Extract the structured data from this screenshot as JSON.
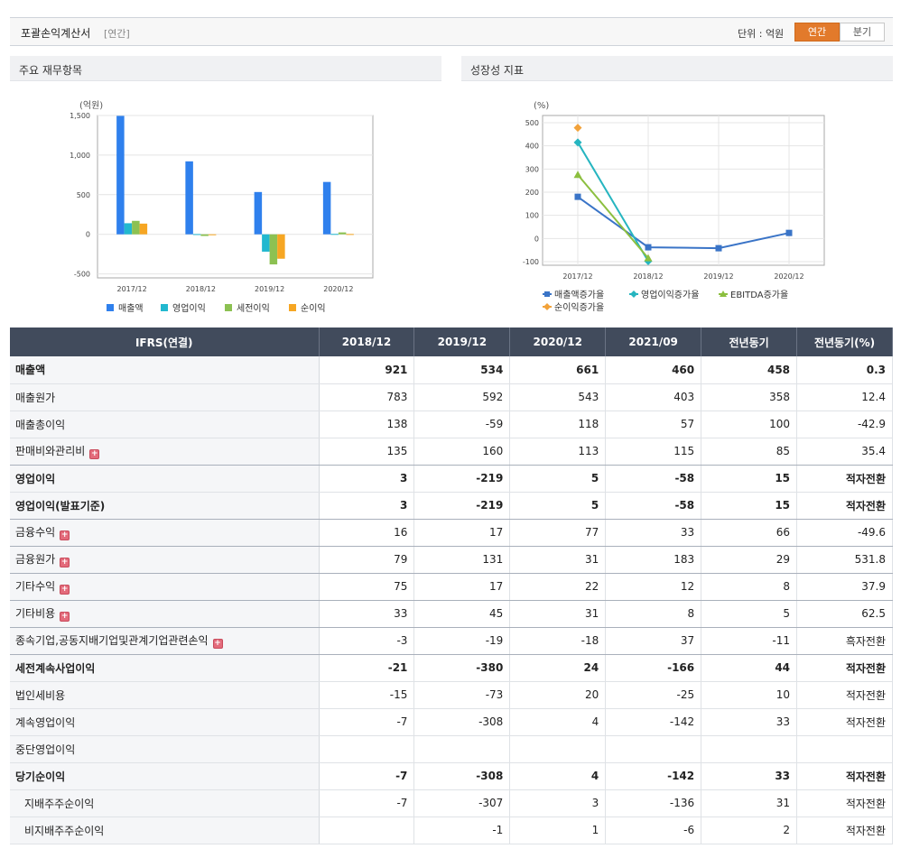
{
  "header": {
    "title": "포괄손익계산서",
    "period_tag": "[연간]",
    "unit_label": "단위 : 억원",
    "tabs": [
      "연간",
      "분기"
    ]
  },
  "panels": {
    "left_title": "주요 재무항목",
    "right_title": "성장성 지표"
  },
  "chart_data": [
    {
      "type": "bar",
      "unit": "(억원)",
      "categories": [
        "2017/12",
        "2018/12",
        "2019/12",
        "2020/12"
      ],
      "y_ticks": [
        "1,500",
        "1,000",
        "500",
        "0",
        "-500"
      ],
      "ylim": [
        -550,
        1500
      ],
      "series": [
        {
          "name": "매출액",
          "color": "#2f80ed",
          "values": [
            1495,
            921,
            534,
            661
          ]
        },
        {
          "name": "영업이익",
          "color": "#22b8cf",
          "values": [
            140,
            3,
            -219,
            5
          ]
        },
        {
          "name": "세전이익",
          "color": "#8cc152",
          "values": [
            170,
            -21,
            -380,
            24
          ]
        },
        {
          "name": "순이익",
          "color": "#f6a623",
          "values": [
            135,
            -7,
            -308,
            4
          ]
        }
      ]
    },
    {
      "type": "line",
      "unit": "(%)",
      "categories": [
        "2017/12",
        "2018/12",
        "2019/12",
        "2020/12"
      ],
      "y_ticks": [
        "500",
        "400",
        "300",
        "200",
        "100",
        "0",
        "-100"
      ],
      "ylim": [
        -100,
        500
      ],
      "series": [
        {
          "name": "매출액증가율",
          "color": "#3a74c7",
          "marker": "square",
          "values": [
            180,
            -38,
            -42,
            24
          ]
        },
        {
          "name": "영업이익증가율",
          "color": "#26b5c0",
          "marker": "diamond",
          "values": [
            415,
            -98,
            null,
            null
          ]
        },
        {
          "name": "EBITDA증가율",
          "color": "#8cbf3f",
          "marker": "triangle",
          "values": [
            275,
            -85,
            null,
            null
          ]
        },
        {
          "name": "순이익증가율",
          "color": "#f2a23a",
          "marker": "diamond",
          "values": [
            478,
            null,
            null,
            null
          ]
        }
      ]
    }
  ],
  "table": {
    "headers": [
      "IFRS(연결)",
      "2018/12",
      "2019/12",
      "2020/12",
      "2021/09",
      "전년동기",
      "전년동기(%)"
    ],
    "rows": [
      {
        "label": "매출액",
        "vals": [
          "921",
          "534",
          "661",
          "460",
          "458",
          "0.3"
        ],
        "bold": true
      },
      {
        "label": "매출원가",
        "vals": [
          "783",
          "592",
          "543",
          "403",
          "358",
          "12.4"
        ]
      },
      {
        "label": "매출총이익",
        "vals": [
          "138",
          "-59",
          "118",
          "57",
          "100",
          "-42.9"
        ]
      },
      {
        "label": "판매비와관리비",
        "vals": [
          "135",
          "160",
          "113",
          "115",
          "85",
          "35.4"
        ],
        "plus": true,
        "sep": true
      },
      {
        "label": "영업이익",
        "vals": [
          "3",
          "-219",
          "5",
          "-58",
          "15",
          "적자전환"
        ],
        "bold": true
      },
      {
        "label": "영업이익(발표기준)",
        "vals": [
          "3",
          "-219",
          "5",
          "-58",
          "15",
          "적자전환"
        ],
        "bold": true,
        "sep": true
      },
      {
        "label": "금융수익",
        "vals": [
          "16",
          "17",
          "77",
          "33",
          "66",
          "-49.6"
        ],
        "plus": true,
        "sep": true
      },
      {
        "label": "금융원가",
        "vals": [
          "79",
          "131",
          "31",
          "183",
          "29",
          "531.8"
        ],
        "plus": true,
        "sep": true
      },
      {
        "label": "기타수익",
        "vals": [
          "75",
          "17",
          "22",
          "12",
          "8",
          "37.9"
        ],
        "plus": true,
        "sep": true
      },
      {
        "label": "기타비용",
        "vals": [
          "33",
          "45",
          "31",
          "8",
          "5",
          "62.5"
        ],
        "plus": true,
        "sep": true
      },
      {
        "label": "종속기업,공동지배기업및관계기업관련손익",
        "vals": [
          "-3",
          "-19",
          "-18",
          "37",
          "-11",
          "흑자전환"
        ],
        "plus": true,
        "sep": true
      },
      {
        "label": "세전계속사업이익",
        "vals": [
          "-21",
          "-380",
          "24",
          "-166",
          "44",
          "적자전환"
        ],
        "bold": true
      },
      {
        "label": "법인세비용",
        "vals": [
          "-15",
          "-73",
          "20",
          "-25",
          "10",
          "적자전환"
        ]
      },
      {
        "label": "계속영업이익",
        "vals": [
          "-7",
          "-308",
          "4",
          "-142",
          "33",
          "적자전환"
        ]
      },
      {
        "label": "중단영업이익",
        "vals": [
          "",
          "",
          "",
          "",
          "",
          ""
        ]
      },
      {
        "label": "당기순이익",
        "vals": [
          "-7",
          "-308",
          "4",
          "-142",
          "33",
          "적자전환"
        ],
        "bold": true
      },
      {
        "label": "지배주주순이익",
        "vals": [
          "-7",
          "-307",
          "3",
          "-136",
          "31",
          "적자전환"
        ],
        "indent": true
      },
      {
        "label": "비지배주주순이익",
        "vals": [
          "",
          "-1",
          "1",
          "-6",
          "2",
          "적자전환"
        ],
        "indent": true
      }
    ]
  }
}
